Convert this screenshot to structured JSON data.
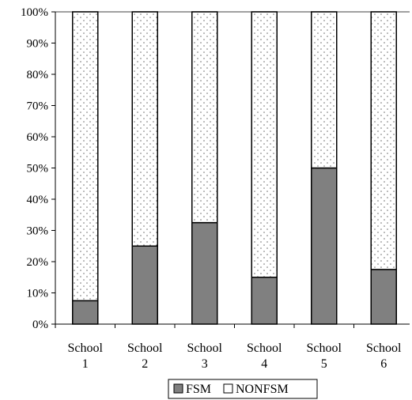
{
  "chart_data": {
    "type": "bar",
    "stacked": true,
    "normalized": true,
    "categories": [
      [
        "School",
        "1"
      ],
      [
        "School",
        "2"
      ],
      [
        "School",
        "3"
      ],
      [
        "School",
        "4"
      ],
      [
        "School",
        "5"
      ],
      [
        "School",
        "6"
      ]
    ],
    "series": [
      {
        "name": "FSM",
        "values": [
          7.5,
          25,
          32.5,
          15,
          50,
          17.5
        ],
        "color": "#808080",
        "pattern": "solid"
      },
      {
        "name": "NONFSM",
        "values": [
          92.5,
          75,
          67.5,
          85,
          50,
          82.5
        ],
        "color": "#ffffff",
        "pattern": "dotted"
      }
    ],
    "yticks": [
      "0%",
      "10%",
      "20%",
      "30%",
      "40%",
      "50%",
      "60%",
      "70%",
      "80%",
      "90%",
      "100%"
    ],
    "ylim": [
      0,
      100
    ],
    "grid": false,
    "legend": "bottom"
  }
}
